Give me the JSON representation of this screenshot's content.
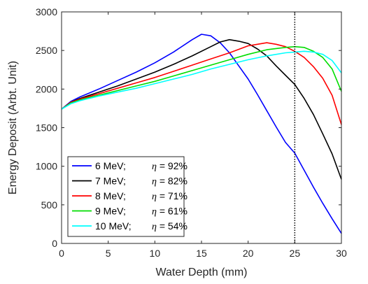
{
  "chart_data": {
    "type": "line",
    "xlabel": "Water Depth (mm)",
    "ylabel": "Energy Deposit (Arbt. Unit)",
    "xlim": [
      0,
      30
    ],
    "ylim": [
      0,
      3000
    ],
    "xticks": [
      "0",
      "5",
      "10",
      "15",
      "20",
      "25",
      "30"
    ],
    "yticks": [
      "0",
      "500",
      "1000",
      "1500",
      "2000",
      "2500",
      "3000"
    ],
    "grid": false,
    "legend_position": "bottom-left",
    "vline": {
      "x": 25,
      "color": "#000000",
      "style": "dotted"
    },
    "series": [
      {
        "energy": "6 MeV;",
        "eta_symbol": "η",
        "eta_value": " = 92%",
        "color": "#0000ff",
        "x": [
          0,
          1,
          2,
          4,
          6,
          8,
          10,
          12,
          14,
          15,
          16,
          17,
          18,
          19,
          20,
          21,
          22,
          23,
          24,
          25,
          26,
          27,
          28,
          29,
          30
        ],
        "y": [
          1740,
          1840,
          1900,
          2000,
          2110,
          2220,
          2340,
          2480,
          2640,
          2710,
          2690,
          2600,
          2470,
          2300,
          2130,
          1930,
          1720,
          1510,
          1310,
          1170,
          950,
          730,
          520,
          320,
          130
        ]
      },
      {
        "energy": "7 MeV;",
        "eta_symbol": "η",
        "eta_value": " = 82%",
        "color": "#000000",
        "x": [
          0,
          1,
          2,
          4,
          6,
          8,
          10,
          12,
          14,
          16,
          17,
          18,
          19,
          20,
          21,
          22,
          23,
          24,
          25,
          26,
          27,
          28,
          29,
          30
        ],
        "y": [
          1740,
          1830,
          1880,
          1960,
          2040,
          2130,
          2220,
          2320,
          2430,
          2550,
          2610,
          2640,
          2620,
          2590,
          2520,
          2430,
          2300,
          2180,
          2060,
          1880,
          1670,
          1420,
          1160,
          830
        ]
      },
      {
        "energy": "8 MeV;",
        "eta_symbol": "η",
        "eta_value": " = 71%",
        "color": "#ff0000",
        "x": [
          0,
          1,
          2,
          4,
          6,
          8,
          10,
          12,
          14,
          16,
          18,
          20,
          21,
          22,
          23,
          24,
          25,
          26,
          27,
          28,
          29,
          30
        ],
        "y": [
          1740,
          1830,
          1870,
          1940,
          2010,
          2080,
          2150,
          2230,
          2310,
          2390,
          2470,
          2560,
          2580,
          2600,
          2580,
          2550,
          2490,
          2410,
          2290,
          2140,
          1920,
          1540
        ]
      },
      {
        "energy": "9 MeV;",
        "eta_symbol": "η",
        "eta_value": " = 61%",
        "color": "#00dd00",
        "x": [
          0,
          1,
          2,
          4,
          6,
          8,
          10,
          12,
          14,
          16,
          18,
          20,
          22,
          24,
          25,
          26,
          27,
          28,
          29,
          30
        ],
        "y": [
          1740,
          1820,
          1860,
          1920,
          1980,
          2040,
          2100,
          2170,
          2240,
          2310,
          2380,
          2450,
          2510,
          2540,
          2550,
          2540,
          2490,
          2410,
          2260,
          1970
        ]
      },
      {
        "energy": "10 MeV;",
        "eta_symbol": "η",
        "eta_value": " = 54%",
        "color": "#00ffff",
        "x": [
          0,
          1,
          2,
          4,
          6,
          8,
          10,
          12,
          14,
          16,
          18,
          20,
          22,
          24,
          25,
          26,
          27,
          28,
          29,
          30
        ],
        "y": [
          1740,
          1810,
          1850,
          1910,
          1960,
          2010,
          2070,
          2130,
          2190,
          2260,
          2320,
          2380,
          2430,
          2470,
          2480,
          2490,
          2480,
          2450,
          2370,
          2210
        ]
      }
    ]
  }
}
